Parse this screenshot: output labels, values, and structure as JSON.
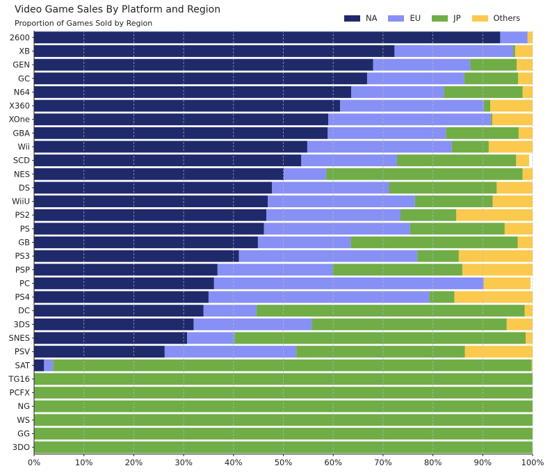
{
  "chart_data": {
    "type": "bar",
    "orientation": "horizontal",
    "stacked": true,
    "title": "Video Game Sales By Platform and Region",
    "subtitle": "Proportion of Games Sold by Region",
    "categories": [
      "2600",
      "XB",
      "GEN",
      "GC",
      "N64",
      "X360",
      "XOne",
      "GBA",
      "Wii",
      "SCD",
      "NES",
      "DS",
      "WiiU",
      "PS2",
      "PS",
      "GB",
      "PS3",
      "PSP",
      "PC",
      "PS4",
      "DC",
      "3DS",
      "SNES",
      "PSV",
      "SAT",
      "TG16",
      "PCFX",
      "NG",
      "WS",
      "GG",
      "3DO"
    ],
    "series": [
      {
        "name": "NA",
        "color": "#1f2a6b",
        "values": [
          93.5,
          72.3,
          68.0,
          66.8,
          63.6,
          61.4,
          59.0,
          58.9,
          54.8,
          53.6,
          50.1,
          47.7,
          46.9,
          46.6,
          46.1,
          44.9,
          41.1,
          36.8,
          36.1,
          35.0,
          34.0,
          32.0,
          30.7,
          26.2,
          2.0,
          0,
          0,
          0,
          0,
          0,
          0
        ]
      },
      {
        "name": "EU",
        "color": "#8790f4",
        "values": [
          5.5,
          23.8,
          19.5,
          19.5,
          18.6,
          28.8,
          32.6,
          23.7,
          29.0,
          19.2,
          8.5,
          23.5,
          29.5,
          26.9,
          29.3,
          18.6,
          35.8,
          23.1,
          54.1,
          44.3,
          10.6,
          23.7,
          9.5,
          26.4,
          1.8,
          0,
          0,
          0,
          0,
          0,
          0
        ]
      },
      {
        "name": "JP",
        "color": "#70ad47",
        "values": [
          0,
          0.4,
          9.3,
          10.8,
          15.8,
          1.3,
          0.3,
          14.6,
          7.4,
          23.9,
          39.4,
          21.6,
          15.6,
          11.2,
          19.0,
          33.5,
          8.3,
          26.0,
          0,
          5.0,
          53.8,
          39.1,
          58.4,
          33.8,
          96.0,
          100,
          100,
          100,
          100,
          100,
          100
        ]
      },
      {
        "name": "Others",
        "color": "#fac94e",
        "values": [
          1.0,
          3.5,
          3.2,
          2.9,
          2.0,
          8.5,
          8.1,
          2.8,
          8.8,
          2.6,
          2.0,
          7.2,
          8.0,
          15.3,
          5.6,
          3.0,
          14.8,
          14.1,
          9.4,
          15.7,
          1.6,
          5.2,
          1.4,
          13.6,
          0.2,
          0,
          0,
          0,
          0,
          0,
          0
        ]
      }
    ],
    "xlim": [
      0,
      100
    ],
    "xticks": [
      "0%",
      "10%",
      "20%",
      "30%",
      "40%",
      "50%",
      "60%",
      "70%",
      "80%",
      "90%",
      "100%"
    ],
    "xgrid": true,
    "legend_position": "top-right"
  }
}
